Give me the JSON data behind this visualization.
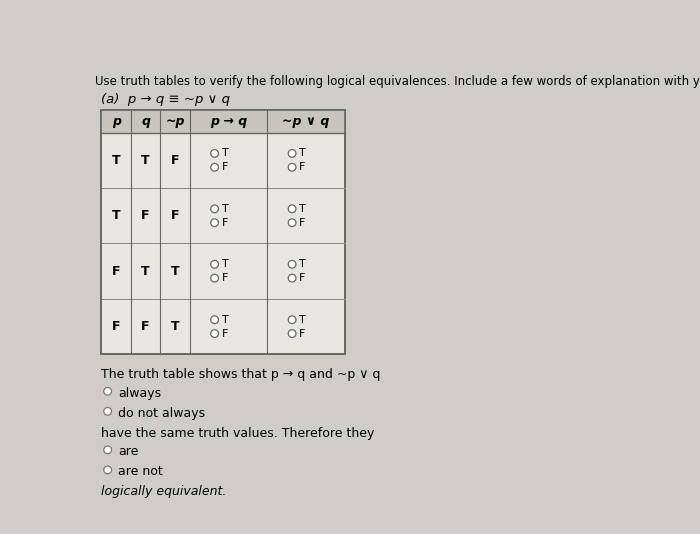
{
  "title_text": "Use truth tables to verify the following logical equivalences. Include a few words of explanation with your answers.",
  "subtitle_text": "(a)  p → q ≡ ~p ∨ q",
  "bg_color": "#d0cdc8",
  "row_vals": [
    [
      "T",
      "T",
      "F"
    ],
    [
      "T",
      "F",
      "F"
    ],
    [
      "F",
      "T",
      "T"
    ],
    [
      "F",
      "F",
      "T"
    ]
  ],
  "footer_line1": "The truth table shows that p → q and ~p ∨ q",
  "footer_opts1": [
    "always",
    "do not always"
  ],
  "footer_line2": "have the same truth values. Therefore they",
  "footer_opts2": [
    "are",
    "are not"
  ],
  "footer_line3": "logically equivalent.",
  "title_fontsize": 8.5,
  "subtitle_fontsize": 9.5,
  "body_fontsize": 9,
  "header_fontsize": 9,
  "footer_fontsize": 9
}
